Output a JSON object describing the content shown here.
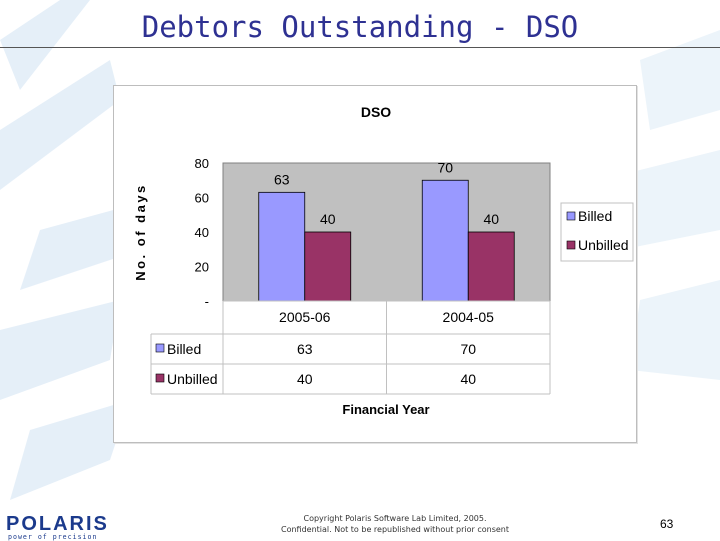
{
  "slide": {
    "title": "Debtors Outstanding - DSO",
    "copyright_line1": "Copyright Polaris Software Lab Limited, 2005.",
    "copyright_line2": "Confidential. Not to be republished without prior consent",
    "page_number": "63",
    "logo_text": "POLARIS",
    "logo_tagline": "power of precision"
  },
  "colors": {
    "billed": "#9999ff",
    "unbilled": "#993366",
    "plot_bg": "#c0c0c0",
    "title": "#2e3192"
  },
  "chart_data": {
    "type": "bar",
    "title": "DSO",
    "xlabel": "Financial Year",
    "ylabel": "No. of days",
    "categories": [
      "2005-06",
      "2004-05"
    ],
    "series": [
      {
        "name": "Billed",
        "values": [
          63,
          70
        ],
        "color": "#9999ff"
      },
      {
        "name": "Unbilled",
        "values": [
          40,
          40
        ],
        "color": "#993366"
      }
    ],
    "ylim": [
      0,
      80
    ],
    "yticks": [
      "-",
      "20",
      "40",
      "60",
      "80"
    ],
    "yticks_values": [
      0,
      20,
      40,
      60,
      80
    ],
    "data_labels": true,
    "data_table": true,
    "grid": false,
    "legend_position": "right"
  }
}
